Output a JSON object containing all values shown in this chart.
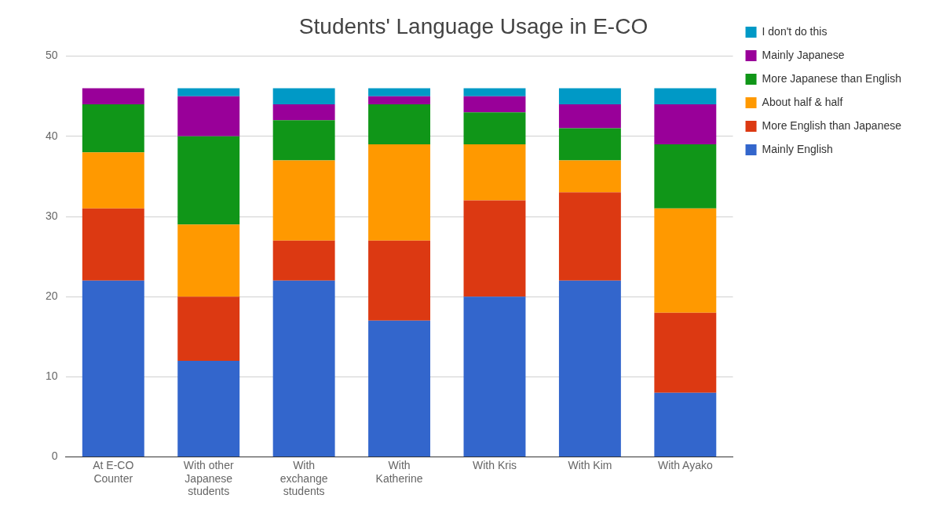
{
  "chart_data": {
    "type": "bar",
    "title": "Students' Language Usage in E-CO",
    "categories": [
      "At E-CO Counter",
      "With other Japanese students",
      "With exchange students",
      "With Katherine",
      "With Kris",
      "With Kim",
      "With Ayako"
    ],
    "stacked": true,
    "ylim": [
      0,
      50
    ],
    "yticks": [
      0,
      10,
      20,
      30,
      40,
      50
    ],
    "grid": "y",
    "legend": "right",
    "series": [
      {
        "name": "Mainly English",
        "color": "#3366cc",
        "values": [
          22,
          12,
          22,
          17,
          20,
          22,
          8
        ]
      },
      {
        "name": "More English than Japanese",
        "color": "#dc3912",
        "values": [
          9,
          8,
          5,
          10,
          12,
          11,
          10
        ]
      },
      {
        "name": "About half & half",
        "color": "#ff9900",
        "values": [
          7,
          9,
          10,
          12,
          7,
          4,
          13
        ]
      },
      {
        "name": "More Japanese than English",
        "color": "#109618",
        "values": [
          6,
          11,
          5,
          5,
          4,
          4,
          8
        ]
      },
      {
        "name": "Mainly Japanese",
        "color": "#990099",
        "values": [
          2,
          5,
          2,
          1,
          2,
          3,
          5
        ]
      },
      {
        "name": "I don't do this",
        "color": "#0099c6",
        "values": [
          0,
          1,
          2,
          1,
          1,
          2,
          2
        ]
      }
    ]
  }
}
